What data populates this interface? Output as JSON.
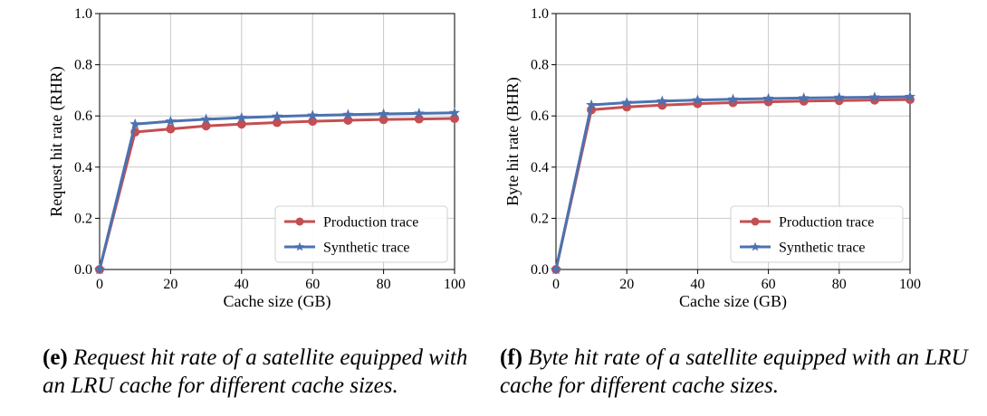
{
  "chart_data": [
    {
      "type": "line",
      "ylabel": "Request hit rate (RHR)",
      "xlabel": "Cache size (GB)",
      "xlim": [
        0,
        100
      ],
      "ylim": [
        0,
        1.0
      ],
      "x_ticks": [
        "0",
        "20",
        "40",
        "60",
        "80",
        "100"
      ],
      "y_ticks": [
        "0.0",
        "0.2",
        "0.4",
        "0.6",
        "0.8",
        "1.0"
      ],
      "grid": true,
      "legend_position": "bottom-right",
      "x": [
        0,
        10,
        20,
        30,
        40,
        50,
        60,
        70,
        80,
        90,
        100
      ],
      "series": [
        {
          "name": "Production trace",
          "color": "#c44e52",
          "marker": "circle",
          "values": [
            0.0,
            0.537,
            0.549,
            0.561,
            0.568,
            0.574,
            0.579,
            0.583,
            0.586,
            0.588,
            0.59
          ]
        },
        {
          "name": "Synthetic trace",
          "color": "#4c72b0",
          "marker": "star",
          "values": [
            0.0,
            0.568,
            0.579,
            0.587,
            0.593,
            0.598,
            0.602,
            0.605,
            0.608,
            0.61,
            0.612
          ]
        }
      ]
    },
    {
      "type": "line",
      "ylabel": "Byte hit rate (BHR)",
      "xlabel": "Cache size (GB)",
      "xlim": [
        0,
        100
      ],
      "ylim": [
        0,
        1.0
      ],
      "x_ticks": [
        "0",
        "20",
        "40",
        "60",
        "80",
        "100"
      ],
      "y_ticks": [
        "0.0",
        "0.2",
        "0.4",
        "0.6",
        "0.8",
        "1.0"
      ],
      "grid": true,
      "legend_position": "bottom-right",
      "x": [
        0,
        10,
        20,
        30,
        40,
        50,
        60,
        70,
        80,
        90,
        100
      ],
      "series": [
        {
          "name": "Production trace",
          "color": "#c44e52",
          "marker": "circle",
          "values": [
            0.0,
            0.624,
            0.635,
            0.642,
            0.648,
            0.652,
            0.655,
            0.658,
            0.66,
            0.662,
            0.664
          ]
        },
        {
          "name": "Synthetic trace",
          "color": "#4c72b0",
          "marker": "star",
          "values": [
            0.0,
            0.643,
            0.652,
            0.658,
            0.662,
            0.665,
            0.668,
            0.67,
            0.672,
            0.673,
            0.675
          ]
        }
      ]
    }
  ],
  "captions": {
    "e": {
      "tag": "(e)",
      "text": "Request hit rate of a satellite equipped with an LRU cache for different cache sizes."
    },
    "f": {
      "tag": "(f)",
      "text": "Byte hit rate of a satellite equipped with an LRU cache for different cache sizes."
    }
  }
}
